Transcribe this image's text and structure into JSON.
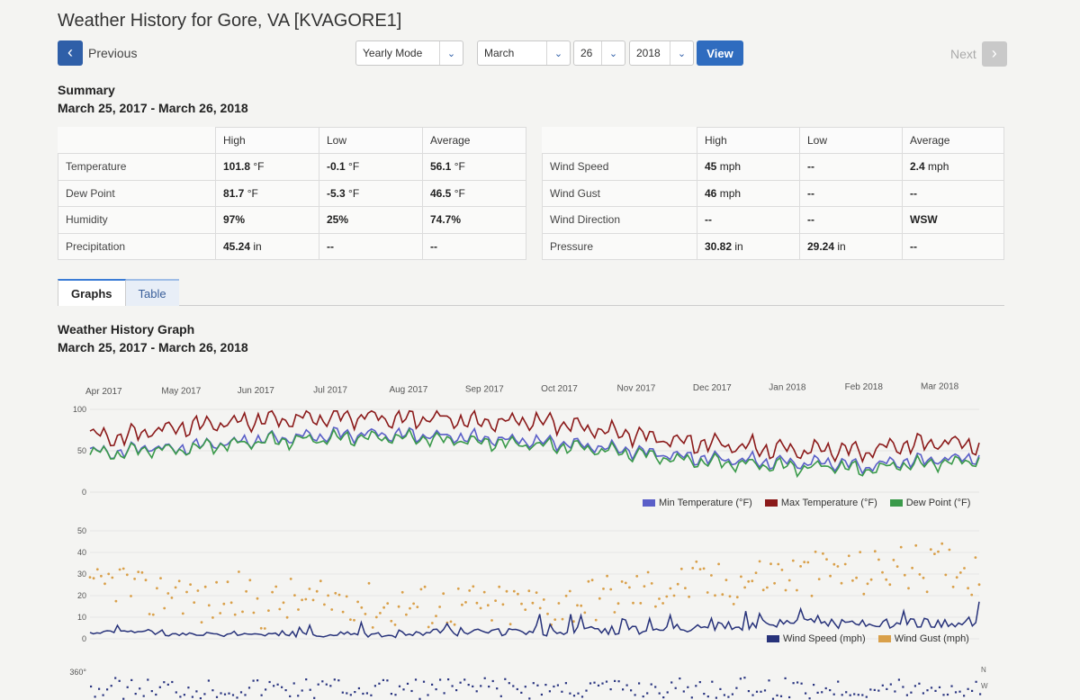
{
  "page": {
    "title": "Weather History for Gore, VA [KVAGORE1]"
  },
  "nav": {
    "previous_label": "Previous",
    "next_label": "Next",
    "mode": "Yearly Mode",
    "month": "March",
    "day": "26",
    "year": "2018",
    "view_label": "View"
  },
  "summary": {
    "heading": "Summary",
    "range": "March 25, 2017 - March 26, 2018",
    "headers": {
      "high": "High",
      "low": "Low",
      "average": "Average"
    },
    "left_rows": [
      {
        "label": "Temperature",
        "high": "101.8",
        "high_unit": "°F",
        "low": "-0.1",
        "low_unit": "°F",
        "avg": "56.1",
        "avg_unit": "°F"
      },
      {
        "label": "Dew Point",
        "high": "81.7",
        "high_unit": "°F",
        "low": "-5.3",
        "low_unit": "°F",
        "avg": "46.5",
        "avg_unit": "°F"
      },
      {
        "label": "Humidity",
        "high": "97%",
        "high_unit": "",
        "low": "25%",
        "low_unit": "",
        "avg": "74.7%",
        "avg_unit": ""
      },
      {
        "label": "Precipitation",
        "high": "45.24",
        "high_unit": "in",
        "low": "--",
        "low_unit": "",
        "avg": "--",
        "avg_unit": ""
      }
    ],
    "right_rows": [
      {
        "label": "Wind Speed",
        "high": "45",
        "high_unit": "mph",
        "low": "--",
        "low_unit": "",
        "avg": "2.4",
        "avg_unit": "mph"
      },
      {
        "label": "Wind Gust",
        "high": "46",
        "high_unit": "mph",
        "low": "--",
        "low_unit": "",
        "avg": "--",
        "avg_unit": ""
      },
      {
        "label": "Wind Direction",
        "high": "--",
        "high_unit": "",
        "low": "--",
        "low_unit": "",
        "avg": "WSW",
        "avg_unit": ""
      },
      {
        "label": "Pressure",
        "high": "30.82",
        "high_unit": "in",
        "low": "29.24",
        "low_unit": "in",
        "avg": "--",
        "avg_unit": ""
      }
    ]
  },
  "tabs": [
    {
      "label": "Graphs",
      "active": true
    },
    {
      "label": "Table",
      "active": false
    }
  ],
  "graph": {
    "heading": "Weather History Graph",
    "range": "March 25, 2017 - March 26, 2018",
    "wind_dir_labels": [
      "N",
      "W"
    ],
    "colors": {
      "min_temp": "#5a5fc8",
      "max_temp": "#8b1a1a",
      "dew": "#3a9a4a",
      "wind": "#27327a",
      "gust": "#d9a04a",
      "dir": "#2a3580"
    }
  },
  "chart_data": [
    {
      "type": "line",
      "x_tick_labels": [
        "Apr 2017",
        "May 2017",
        "Jun 2017",
        "Jul 2017",
        "Aug 2017",
        "Sep 2017",
        "Oct 2017",
        "Nov 2017",
        "Dec 2017",
        "Jan 2018",
        "Feb 2018",
        "Mar 2018"
      ],
      "y_ticks": [
        0,
        50,
        100
      ],
      "ylim": [
        0,
        100
      ],
      "grid": true,
      "legend_position": "bottom-right",
      "series": [
        {
          "name": "Min Temperature (°F)",
          "values": [
            50,
            48,
            55,
            52,
            58,
            60,
            64,
            66,
            68,
            70,
            70,
            69,
            68,
            66,
            64,
            62,
            60,
            58,
            54,
            50,
            46,
            42,
            40,
            38,
            36,
            35,
            36,
            30,
            36,
            38,
            40,
            42
          ]
        },
        {
          "name": "Max Temperature (°F)",
          "values": [
            70,
            66,
            74,
            78,
            82,
            84,
            88,
            88,
            90,
            92,
            90,
            88,
            90,
            86,
            84,
            86,
            84,
            80,
            74,
            70,
            64,
            60,
            58,
            54,
            52,
            50,
            52,
            48,
            56,
            58,
            60,
            56
          ]
        },
        {
          "name": "Dew Point (°F)",
          "values": [
            48,
            46,
            52,
            50,
            56,
            58,
            62,
            63,
            64,
            66,
            66,
            66,
            64,
            62,
            60,
            58,
            56,
            54,
            50,
            46,
            42,
            38,
            36,
            34,
            32,
            30,
            32,
            26,
            32,
            34,
            36,
            38
          ]
        }
      ]
    },
    {
      "type": "line",
      "y_ticks": [
        0,
        10,
        20,
        30,
        40,
        50
      ],
      "ylim": [
        0,
        50
      ],
      "grid": true,
      "legend_position": "bottom-right",
      "series": [
        {
          "name": "Wind Speed (mph)",
          "values": [
            3,
            3,
            3,
            2,
            2,
            2,
            2,
            2,
            2,
            2,
            2,
            2,
            3,
            3,
            3,
            3,
            3,
            4,
            4,
            4,
            5,
            5,
            6,
            6,
            7,
            7,
            7,
            8,
            7,
            7,
            8,
            8
          ]
        },
        {
          "name": "Wind Gust (mph)",
          "type": "scatter",
          "values": [
            20,
            28,
            18,
            24,
            15,
            22,
            14,
            18,
            16,
            20,
            14,
            16,
            15,
            16,
            14,
            16,
            15,
            18,
            20,
            22,
            24,
            26,
            25,
            28,
            30,
            29,
            32,
            30,
            34,
            32,
            35,
            30
          ]
        }
      ]
    }
  ]
}
